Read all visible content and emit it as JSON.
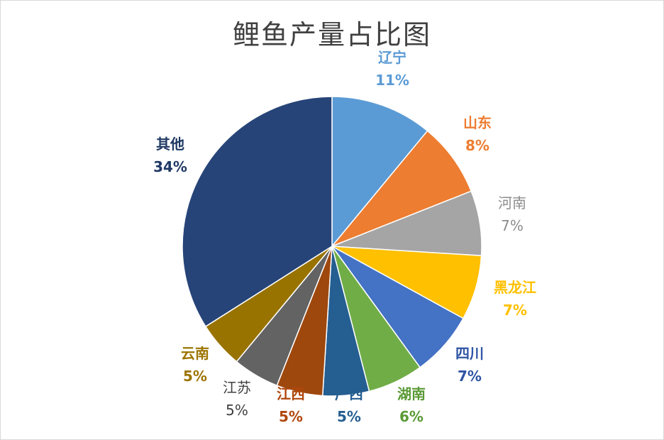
{
  "chart_data": {
    "type": "pie",
    "title": "鲤鱼产量占比图",
    "slices": [
      {
        "label": "辽宁",
        "value": 11,
        "percent_label": "11%",
        "color": "#5b9bd5",
        "label_color": "#5b9bd5",
        "weight": "bold"
      },
      {
        "label": "山东",
        "value": 8,
        "percent_label": "8%",
        "color": "#ed7d31",
        "label_color": "#ed7d31",
        "weight": "bold"
      },
      {
        "label": "河南",
        "value": 7,
        "percent_label": "7%",
        "color": "#a5a5a5",
        "label_color": "#8c8c8c",
        "weight": "normal"
      },
      {
        "label": "黑龙江",
        "value": 7,
        "percent_label": "7%",
        "color": "#ffc000",
        "label_color": "#ffc000",
        "weight": "bold"
      },
      {
        "label": "四川",
        "value": 7,
        "percent_label": "7%",
        "color": "#4472c4",
        "label_color": "#2f55a4",
        "weight": "bold"
      },
      {
        "label": "湖南",
        "value": 6,
        "percent_label": "6%",
        "color": "#70ad47",
        "label_color": "#5a9a35",
        "weight": "bold"
      },
      {
        "label": "广西",
        "value": 5,
        "percent_label": "5%",
        "color": "#255e91",
        "label_color": "#255e91",
        "weight": "bold"
      },
      {
        "label": "江西",
        "value": 5,
        "percent_label": "5%",
        "color": "#9e480e",
        "label_color": "#b0470c",
        "weight": "bold"
      },
      {
        "label": "江苏",
        "value": 5,
        "percent_label": "5%",
        "color": "#636363",
        "label_color": "#404040",
        "weight": "normal"
      },
      {
        "label": "云南",
        "value": 5,
        "percent_label": "5%",
        "color": "#997300",
        "label_color": "#9c7400",
        "weight": "bold"
      },
      {
        "label": "其他",
        "value": 34,
        "percent_label": "34%",
        "color": "#264478",
        "label_color": "#1f3864",
        "weight": "bold"
      }
    ]
  }
}
